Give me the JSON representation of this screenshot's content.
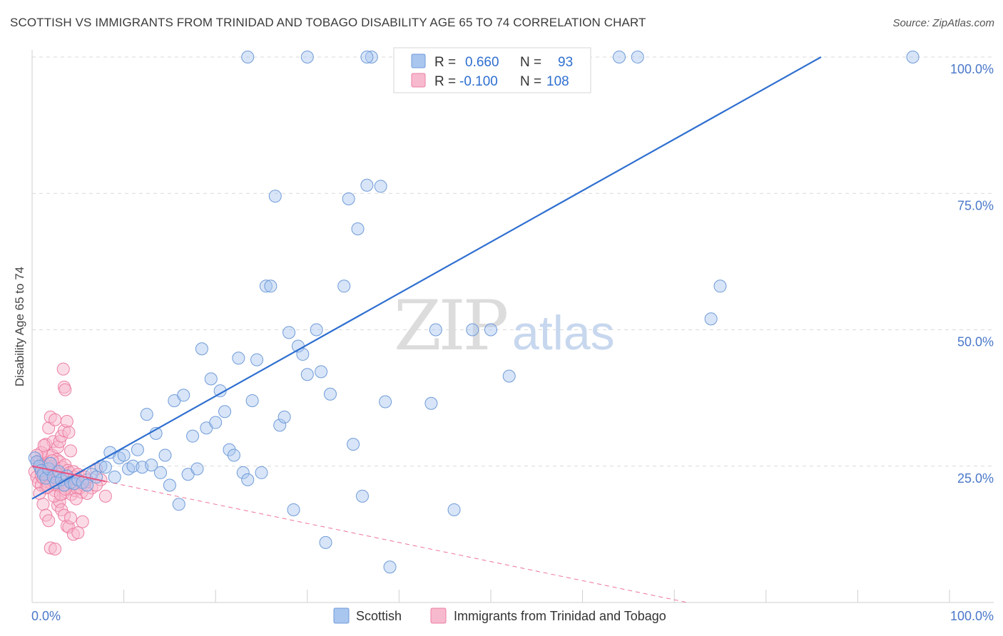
{
  "title": "SCOTTISH VS IMMIGRANTS FROM TRINIDAD AND TOBAGO DISABILITY AGE 65 TO 74 CORRELATION CHART",
  "source": "Source: ZipAtlas.com",
  "watermark": {
    "zip": "ZIP",
    "atlas": "atlas"
  },
  "colors": {
    "scottish_fill": "#a9c6ef",
    "scottish_stroke": "#6f9bd8",
    "scottish_line": "#2f6fd0",
    "trinidad_fill": "#f7b9cd",
    "trinidad_stroke": "#ec7fa3",
    "trinidad_line": "#e8507f",
    "grid": "#d9d9d9",
    "tick_label": "#4a78c9"
  },
  "legend": {
    "r_label": "R =",
    "n_label": "N =",
    "rows": [
      {
        "name": "Scottish",
        "r": "0.660",
        "n": "93"
      },
      {
        "name": "Immigrants from Trinidad and Tobago",
        "r": "-0.100",
        "n": "108"
      }
    ]
  },
  "chart_data": {
    "type": "scatter",
    "title": "SCOTTISH VS IMMIGRANTS FROM TRINIDAD AND TOBAGO DISABILITY AGE 65 TO 74 CORRELATION CHART",
    "xlabel": "",
    "ylabel": "Disability Age 65 to 74",
    "xlim": [
      0,
      100
    ],
    "ylim": [
      0,
      100
    ],
    "x_tick_labels": [
      "0.0%",
      "100.0%"
    ],
    "y_ticks": [
      25,
      50,
      75,
      100
    ],
    "y_tick_labels": [
      "25.0%",
      "50.0%",
      "75.0%",
      "100.0%"
    ],
    "grid": "horizontal dashed",
    "legend_position": "top-center",
    "series": [
      {
        "name": "Scottish",
        "r": 0.66,
        "n": 93,
        "trend": {
          "x": [
            0,
            86
          ],
          "y": [
            19,
            100
          ]
        },
        "points": [
          [
            0.3,
            26.5
          ],
          [
            0.5,
            25.8
          ],
          [
            0.8,
            25.0
          ],
          [
            1.0,
            24.2
          ],
          [
            1.2,
            23.5
          ],
          [
            1.5,
            22.8
          ],
          [
            1.8,
            24.5
          ],
          [
            2.0,
            25.5
          ],
          [
            2.3,
            23.0
          ],
          [
            2.6,
            22.0
          ],
          [
            2.9,
            24.0
          ],
          [
            3.2,
            22.5
          ],
          [
            3.5,
            21.5
          ],
          [
            3.8,
            23.2
          ],
          [
            4.2,
            22.0
          ],
          [
            4.6,
            21.8
          ],
          [
            5.0,
            22.5
          ],
          [
            5.5,
            22.0
          ],
          [
            6.0,
            21.5
          ],
          [
            6.5,
            23.5
          ],
          [
            7.0,
            23.0
          ],
          [
            7.5,
            25.0
          ],
          [
            8.0,
            24.8
          ],
          [
            8.5,
            27.5
          ],
          [
            9.0,
            23.0
          ],
          [
            9.5,
            26.5
          ],
          [
            10.0,
            27.0
          ],
          [
            10.5,
            24.5
          ],
          [
            11.0,
            25.0
          ],
          [
            11.5,
            28.0
          ],
          [
            12.0,
            24.8
          ],
          [
            12.5,
            34.5
          ],
          [
            13.0,
            25.2
          ],
          [
            13.5,
            31.0
          ],
          [
            14.0,
            23.8
          ],
          [
            14.5,
            27.0
          ],
          [
            15.0,
            21.5
          ],
          [
            15.5,
            37.0
          ],
          [
            16.0,
            18.0
          ],
          [
            16.5,
            38.0
          ],
          [
            17.0,
            23.5
          ],
          [
            17.5,
            30.5
          ],
          [
            18.0,
            24.5
          ],
          [
            18.5,
            46.5
          ],
          [
            19.0,
            32.0
          ],
          [
            19.5,
            41.0
          ],
          [
            20.0,
            33.0
          ],
          [
            20.5,
            38.8
          ],
          [
            21.0,
            35.0
          ],
          [
            21.5,
            28.0
          ],
          [
            22.0,
            27.0
          ],
          [
            22.5,
            44.8
          ],
          [
            23.0,
            23.8
          ],
          [
            23.5,
            22.5
          ],
          [
            24.0,
            37.0
          ],
          [
            24.5,
            44.5
          ],
          [
            25.0,
            23.8
          ],
          [
            25.5,
            58.0
          ],
          [
            26.0,
            58.0
          ],
          [
            26.5,
            74.5
          ],
          [
            27.0,
            32.5
          ],
          [
            27.5,
            34.0
          ],
          [
            28.0,
            49.5
          ],
          [
            28.5,
            17.0
          ],
          [
            29.0,
            47.0
          ],
          [
            29.5,
            45.5
          ],
          [
            30.0,
            41.8
          ],
          [
            31.0,
            50.0
          ],
          [
            31.5,
            42.3
          ],
          [
            32.0,
            11.0
          ],
          [
            32.5,
            38.2
          ],
          [
            34.0,
            58.0
          ],
          [
            34.5,
            74.0
          ],
          [
            35.0,
            29.0
          ],
          [
            35.5,
            68.5
          ],
          [
            36.0,
            19.5
          ],
          [
            36.5,
            76.5
          ],
          [
            37.0,
            100.0
          ],
          [
            38.0,
            76.3
          ],
          [
            38.5,
            36.8
          ],
          [
            39.0,
            6.5
          ],
          [
            43.5,
            36.5
          ],
          [
            44.0,
            50.0
          ],
          [
            46.0,
            17.0
          ],
          [
            48.0,
            50.0
          ],
          [
            50.0,
            50.0
          ],
          [
            52.0,
            41.5
          ],
          [
            23.5,
            100.0
          ],
          [
            30.0,
            100.0
          ],
          [
            36.5,
            100.0
          ],
          [
            64.0,
            100.0
          ],
          [
            74.0,
            52.0
          ],
          [
            75.0,
            58.0
          ],
          [
            96.0,
            100.0
          ],
          [
            66.0,
            100.0
          ]
        ]
      },
      {
        "name": "Immigrants from Trinidad and Tobago",
        "r": -0.1,
        "n": 108,
        "trend": {
          "x": [
            0,
            100
          ],
          "y": [
            25,
            -10
          ]
        },
        "points": [
          [
            0.3,
            24.0
          ],
          [
            0.5,
            23.0
          ],
          [
            0.6,
            25.5
          ],
          [
            0.7,
            22.0
          ],
          [
            0.8,
            26.0
          ],
          [
            0.9,
            24.5
          ],
          [
            1.0,
            23.2
          ],
          [
            1.0,
            21.5
          ],
          [
            1.1,
            25.0
          ],
          [
            1.2,
            22.8
          ],
          [
            1.2,
            26.5
          ],
          [
            1.3,
            24.0
          ],
          [
            1.4,
            23.5
          ],
          [
            1.5,
            25.2
          ],
          [
            1.5,
            21.0
          ],
          [
            1.6,
            22.2
          ],
          [
            1.7,
            24.8
          ],
          [
            1.8,
            23.0
          ],
          [
            1.8,
            26.8
          ],
          [
            1.9,
            25.5
          ],
          [
            2.0,
            22.5
          ],
          [
            2.0,
            24.2
          ],
          [
            2.1,
            21.8
          ],
          [
            2.2,
            23.8
          ],
          [
            2.2,
            27.0
          ],
          [
            2.3,
            25.0
          ],
          [
            2.4,
            22.0
          ],
          [
            2.5,
            24.5
          ],
          [
            2.5,
            20.5
          ],
          [
            2.6,
            23.2
          ],
          [
            2.7,
            26.2
          ],
          [
            2.8,
            22.8
          ],
          [
            2.9,
            24.0
          ],
          [
            3.0,
            21.5
          ],
          [
            3.0,
            25.8
          ],
          [
            3.1,
            23.5
          ],
          [
            3.2,
            22.0
          ],
          [
            3.3,
            24.8
          ],
          [
            3.4,
            20.0
          ],
          [
            3.5,
            23.0
          ],
          [
            3.6,
            25.2
          ],
          [
            3.7,
            21.2
          ],
          [
            3.8,
            22.5
          ],
          [
            3.9,
            24.2
          ],
          [
            4.0,
            20.8
          ],
          [
            4.1,
            23.8
          ],
          [
            4.2,
            22.2
          ],
          [
            4.3,
            19.8
          ],
          [
            4.4,
            21.8
          ],
          [
            4.5,
            24.0
          ],
          [
            4.6,
            23.0
          ],
          [
            4.7,
            20.5
          ],
          [
            4.8,
            22.5
          ],
          [
            4.9,
            21.0
          ],
          [
            5.0,
            23.5
          ],
          [
            5.2,
            22.0
          ],
          [
            5.4,
            20.2
          ],
          [
            5.6,
            21.5
          ],
          [
            5.8,
            23.0
          ],
          [
            6.0,
            22.5
          ],
          [
            6.5,
            21.0
          ],
          [
            7.0,
            24.5
          ],
          [
            8.0,
            19.5
          ],
          [
            7.5,
            22.5
          ],
          [
            0.8,
            20.0
          ],
          [
            1.2,
            18.0
          ],
          [
            1.5,
            16.0
          ],
          [
            1.8,
            15.0
          ],
          [
            2.0,
            10.0
          ],
          [
            2.5,
            9.8
          ],
          [
            2.8,
            17.8
          ],
          [
            3.0,
            18.5
          ],
          [
            3.2,
            17.0
          ],
          [
            3.5,
            16.0
          ],
          [
            3.8,
            14.0
          ],
          [
            4.0,
            13.8
          ],
          [
            4.2,
            15.5
          ],
          [
            4.5,
            12.5
          ],
          [
            5.0,
            12.8
          ],
          [
            5.5,
            14.8
          ],
          [
            1.5,
            29.0
          ],
          [
            1.8,
            32.0
          ],
          [
            2.0,
            34.0
          ],
          [
            2.3,
            29.5
          ],
          [
            2.5,
            33.5
          ],
          [
            2.8,
            28.5
          ],
          [
            3.0,
            29.5
          ],
          [
            3.2,
            30.5
          ],
          [
            3.5,
            31.5
          ],
          [
            3.8,
            33.2
          ],
          [
            4.0,
            31.2
          ],
          [
            4.2,
            27.8
          ],
          [
            3.4,
            42.8
          ],
          [
            3.5,
            39.5
          ],
          [
            3.6,
            39.0
          ],
          [
            2.2,
            26.0
          ],
          [
            2.6,
            21.5
          ],
          [
            1.0,
            27.5
          ],
          [
            1.3,
            28.8
          ],
          [
            0.5,
            27.0
          ],
          [
            2.4,
            19.5
          ],
          [
            3.1,
            19.8
          ],
          [
            3.6,
            20.8
          ],
          [
            4.8,
            19.0
          ],
          [
            5.2,
            21.0
          ],
          [
            6.0,
            20.0
          ],
          [
            7.0,
            21.5
          ],
          [
            1.7,
            21.2
          ]
        ]
      }
    ]
  }
}
